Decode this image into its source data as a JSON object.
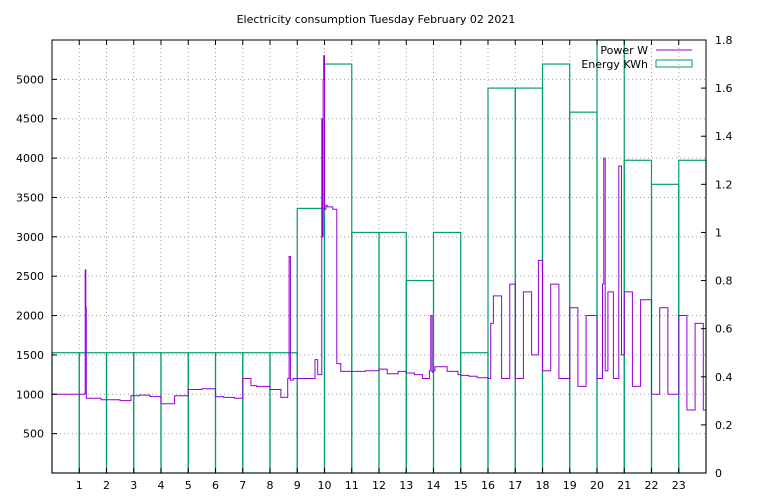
{
  "chart_data": {
    "type": "bar",
    "title": "Electricity consumption Tuesday February 02 2021",
    "xlabel": "",
    "ylabel": "",
    "grid": true,
    "legend_position": "top-right",
    "x_ticks": [
      "1",
      "2",
      "3",
      "4",
      "5",
      "6",
      "7",
      "8",
      "9",
      "10",
      "11",
      "12",
      "13",
      "14",
      "15",
      "16",
      "17",
      "18",
      "19",
      "20",
      "21",
      "22",
      "23"
    ],
    "xlim": [
      0,
      24
    ],
    "y_left": {
      "ticks": [
        500,
        1000,
        1500,
        2000,
        2500,
        3000,
        3500,
        4000,
        4500,
        5000
      ],
      "lim": [
        0,
        5500
      ]
    },
    "y_right": {
      "ticks": [
        "0",
        "0.2",
        "0.4",
        "0.6",
        "0.8",
        "1",
        "1.2",
        "1.4",
        "1.6",
        "1.8"
      ],
      "lim": [
        0,
        1.8
      ]
    },
    "series": [
      {
        "name": "Power W",
        "type": "line",
        "axis": "left",
        "color": "#9400d3",
        "x": [
          0.0,
          1.2,
          1.22,
          1.24,
          1.26,
          1.3,
          1.8,
          2.1,
          2.5,
          2.9,
          3.2,
          3.6,
          4.0,
          4.5,
          5.0,
          5.5,
          6.0,
          6.3,
          6.7,
          7.0,
          7.3,
          7.5,
          8.0,
          8.4,
          8.65,
          8.7,
          8.75,
          8.85,
          9.4,
          9.65,
          9.75,
          9.85,
          9.9,
          9.93,
          9.95,
          9.97,
          10.0,
          10.05,
          10.1,
          10.3,
          10.45,
          10.6,
          11.0,
          11.5,
          12.0,
          12.3,
          12.7,
          13.0,
          13.3,
          13.6,
          13.85,
          13.9,
          13.95,
          14.0,
          14.05,
          14.15,
          14.5,
          14.9,
          15.0,
          15.3,
          15.6,
          16.0,
          16.1,
          16.2,
          16.5,
          16.8,
          17.0,
          17.3,
          17.6,
          17.85,
          18.0,
          18.3,
          18.6,
          19.0,
          19.3,
          19.6,
          20.0,
          20.2,
          20.25,
          20.3,
          20.4,
          20.6,
          20.8,
          20.9,
          21.0,
          21.3,
          21.6,
          22.0,
          22.3,
          22.6,
          23.0,
          23.3,
          23.6,
          23.9
        ],
        "y": [
          1000,
          1010,
          2580,
          2100,
          950,
          950,
          930,
          930,
          920,
          980,
          990,
          970,
          880,
          980,
          1060,
          1070,
          970,
          960,
          950,
          1200,
          1110,
          1100,
          1060,
          960,
          1200,
          2750,
          1180,
          1200,
          1200,
          1440,
          1250,
          1250,
          4500,
          3000,
          5000,
          5300,
          3350,
          3400,
          3380,
          3350,
          1390,
          1290,
          1290,
          1300,
          1320,
          1260,
          1290,
          1270,
          1250,
          1200,
          1300,
          2000,
          1280,
          1300,
          1350,
          1350,
          1290,
          1250,
          1240,
          1230,
          1210,
          1200,
          1900,
          2250,
          1200,
          2400,
          1200,
          2300,
          1500,
          2700,
          1300,
          2400,
          1200,
          2100,
          1100,
          2000,
          1200,
          2400,
          4000,
          1300,
          2300,
          1200,
          3900,
          1500,
          2300,
          1100,
          2200,
          1000,
          2100,
          1000,
          2000,
          800,
          1900,
          800
        ]
      },
      {
        "name": "Energy KWh",
        "type": "bar",
        "axis": "right",
        "color": "#009e73",
        "categories": [
          "0",
          "1",
          "2",
          "3",
          "4",
          "5",
          "6",
          "7",
          "8",
          "9",
          "10",
          "11",
          "12",
          "13",
          "14",
          "15",
          "16",
          "17",
          "18",
          "19",
          "20",
          "21",
          "22",
          "23"
        ],
        "values": [
          0.5,
          0.5,
          0.5,
          0.5,
          0.5,
          0.5,
          0.5,
          0.5,
          0.5,
          1.1,
          1.7,
          1.0,
          1.0,
          0.8,
          1.0,
          0.5,
          1.6,
          1.6,
          1.7,
          1.5,
          1.8,
          1.3,
          1.2,
          1.3
        ]
      }
    ]
  }
}
